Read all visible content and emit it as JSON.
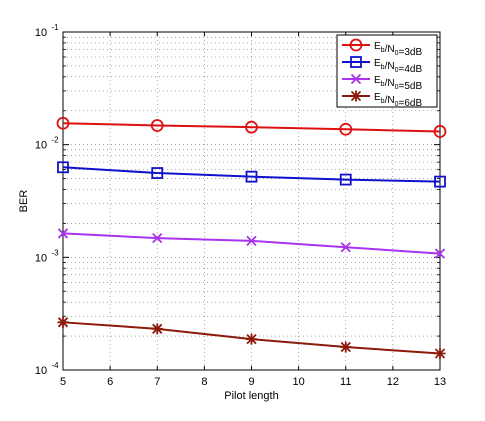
{
  "chart_data": {
    "type": "line",
    "title": "",
    "xlabel": "Pilot length",
    "ylabel": "BER",
    "x": [
      5,
      7,
      9,
      11,
      13
    ],
    "xlim": [
      5,
      13
    ],
    "xticks": [
      "5",
      "6",
      "7",
      "8",
      "9",
      "10",
      "11",
      "12",
      "13"
    ],
    "ylim": [
      0.0001,
      0.1
    ],
    "yscale": "log",
    "yticks": [
      {
        "base": "10",
        "exp": "-1",
        "value": 0.1
      },
      {
        "base": "10",
        "exp": "-2",
        "value": 0.01
      },
      {
        "base": "10",
        "exp": "-3",
        "value": 0.001
      },
      {
        "base": "10",
        "exp": "-4",
        "value": 0.0001
      }
    ],
    "grid": true,
    "legend_position": "top-right",
    "series": [
      {
        "name": "Eb/N0=3dB",
        "label_main": "E",
        "label_sub1": "b",
        "label_mid": "/N",
        "label_sub2": "0",
        "label_tail": "=3dB",
        "marker": "circle",
        "color": "#dd1111",
        "values": [
          0.0155,
          0.0148,
          0.0143,
          0.0137,
          0.0131
        ]
      },
      {
        "name": "Eb/N0=4dB",
        "label_main": "E",
        "label_sub1": "b",
        "label_mid": "/N",
        "label_sub2": "0",
        "label_tail": "=4dB",
        "marker": "square",
        "color": "#1111cc",
        "values": [
          0.0063,
          0.0056,
          0.0052,
          0.0049,
          0.0047
        ]
      },
      {
        "name": "Eb/N0=5dB",
        "label_main": "E",
        "label_sub1": "b",
        "label_mid": "/N",
        "label_sub2": "0",
        "label_tail": "=5dB",
        "marker": "x",
        "color": "#aa33ee",
        "values": [
          0.00163,
          0.00148,
          0.0014,
          0.00123,
          0.00108
        ]
      },
      {
        "name": "Eb/N0=6dB",
        "label_main": "E",
        "label_sub1": "b",
        "label_mid": "/N",
        "label_sub2": "0",
        "label_tail": "=6dB",
        "marker": "asterisk",
        "color": "#8b1a0a",
        "values": [
          0.000265,
          0.000232,
          0.000188,
          0.00016,
          0.00014
        ]
      }
    ]
  }
}
